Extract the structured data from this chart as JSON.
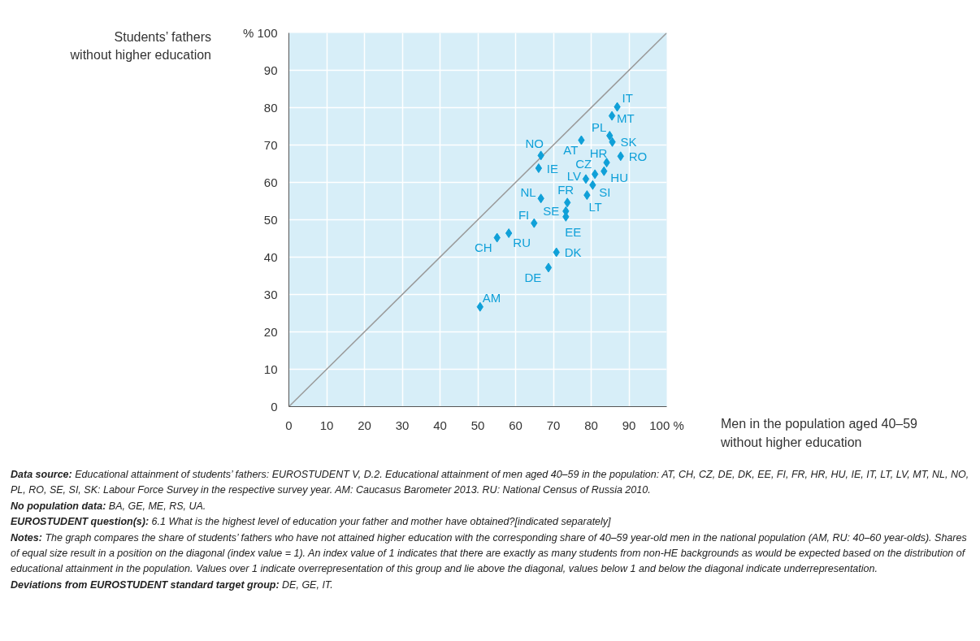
{
  "chart_data": {
    "type": "scatter",
    "xlabel": "Men in the population aged 40–59\nwithout higher education",
    "ylabel": "Students’ fathers\nwithout higher education",
    "xlim": [
      0,
      100
    ],
    "ylim": [
      0,
      100
    ],
    "xticks": [
      0,
      10,
      20,
      30,
      40,
      50,
      60,
      70,
      80,
      90,
      {
        "value": 100,
        "label": "100 %"
      }
    ],
    "yticks": [
      0,
      10,
      20,
      30,
      40,
      50,
      60,
      70,
      80,
      90,
      {
        "value": 100,
        "label": "% 100"
      }
    ],
    "grid": true,
    "marker": "diamond",
    "legend": false,
    "series": [
      {
        "type": "line",
        "color": "#9a9a9a",
        "marker": "none",
        "x": [
          0,
          100
        ],
        "values": [
          0,
          100
        ]
      },
      {
        "name": "IT",
        "color": "#0fa0d8",
        "x": [
          86.9
        ],
        "values": [
          80.2
        ]
      },
      {
        "name": "MT",
        "color": "#0fa0d8",
        "x": [
          85.5
        ],
        "values": [
          77.8
        ]
      },
      {
        "name": "PL",
        "color": "#0fa0d8",
        "x": [
          84.9
        ],
        "values": [
          72.5
        ]
      },
      {
        "name": "SK",
        "color": "#0fa0d8",
        "x": [
          85.6
        ],
        "values": [
          70.8
        ]
      },
      {
        "name": "AT",
        "color": "#0fa0d8",
        "x": [
          77.4
        ],
        "values": [
          71.3
        ]
      },
      {
        "name": "NO",
        "color": "#0fa0d8",
        "x": [
          66.7
        ],
        "values": [
          67.2
        ]
      },
      {
        "name": "RO",
        "color": "#0fa0d8",
        "x": [
          87.8
        ],
        "values": [
          67.0
        ]
      },
      {
        "name": "HR",
        "color": "#0fa0d8",
        "x": [
          84.1
        ],
        "values": [
          65.3
        ]
      },
      {
        "name": "IE",
        "color": "#0fa0d8",
        "x": [
          66.1
        ],
        "values": [
          63.8
        ]
      },
      {
        "name": "HU",
        "color": "#0fa0d8",
        "x": [
          83.4
        ],
        "values": [
          63.0
        ]
      },
      {
        "name": "CZ",
        "color": "#0fa0d8",
        "x": [
          81.0
        ],
        "values": [
          62.2
        ]
      },
      {
        "name": "LV",
        "color": "#0fa0d8",
        "x": [
          78.6
        ],
        "values": [
          60.9
        ]
      },
      {
        "name": "SI",
        "color": "#0fa0d8",
        "x": [
          80.4
        ],
        "values": [
          59.3
        ]
      },
      {
        "name": "LT",
        "color": "#0fa0d8",
        "x": [
          78.9
        ],
        "values": [
          56.6
        ]
      },
      {
        "name": "NL",
        "color": "#0fa0d8",
        "x": [
          66.7
        ],
        "values": [
          55.7
        ]
      },
      {
        "name": "FR",
        "color": "#0fa0d8",
        "x": [
          73.7
        ],
        "values": [
          54.6
        ]
      },
      {
        "name": "SE",
        "color": "#0fa0d8",
        "x": [
          73.3
        ],
        "values": [
          52.3
        ]
      },
      {
        "name": "EE",
        "color": "#0fa0d8",
        "x": [
          73.3
        ],
        "values": [
          50.8
        ]
      },
      {
        "name": "FI",
        "color": "#0fa0d8",
        "x": [
          64.9
        ],
        "values": [
          49.1
        ]
      },
      {
        "name": "RU",
        "color": "#0fa0d8",
        "x": [
          58.2
        ],
        "values": [
          46.4
        ]
      },
      {
        "name": "CH",
        "color": "#0fa0d8",
        "x": [
          55.1
        ],
        "values": [
          45.2
        ]
      },
      {
        "name": "DK",
        "color": "#0fa0d8",
        "x": [
          70.8
        ],
        "values": [
          41.3
        ]
      },
      {
        "name": "DE",
        "color": "#0fa0d8",
        "x": [
          68.7
        ],
        "values": [
          37.2
        ]
      },
      {
        "name": "AM",
        "color": "#0fa0d8",
        "x": [
          50.6
        ],
        "values": [
          26.7
        ]
      }
    ],
    "annotations": [
      "Data source: Educational attainment of students’ fathers: EUROSTUDENT V, D.2. Educational attainment of men aged 40–59 in the population: AT, CH, CZ, DE, DK, EE, FI, FR, HR, HU, IE, IT, LT, LV, MT, NL, NO, PL, RO, SE, SI, SK: Labour Force Survey in the respective survey year. AM: Caucasus Barometer 2013. RU: National Census of Russia 2010.",
      "No population data: BA, GE, ME, RS, UA.",
      "EUROSTUDENT question(s): 6.1 What is the highest level of education your father and mother have obtained?[indicated separately]",
      "Notes: The graph compares the share of students’ fathers who have not attained higher education with the corresponding share of 40–59 year-old men in the national population (AM, RU: 40–60 year-olds). Shares of equal size result in a position on the diagonal (index value = 1). An index value of 1 indicates that there are exactly as many students from non-HE backgrounds as would be expected based on the distribution of educational attainment in the population. Values over 1 indicate overrepresentation of this group and lie above the diagonal, values below 1 and below the diagonal indicate underrepresentation.",
      "Deviations from EUROSTUDENT standard target group: DE, GE, IT."
    ]
  }
}
